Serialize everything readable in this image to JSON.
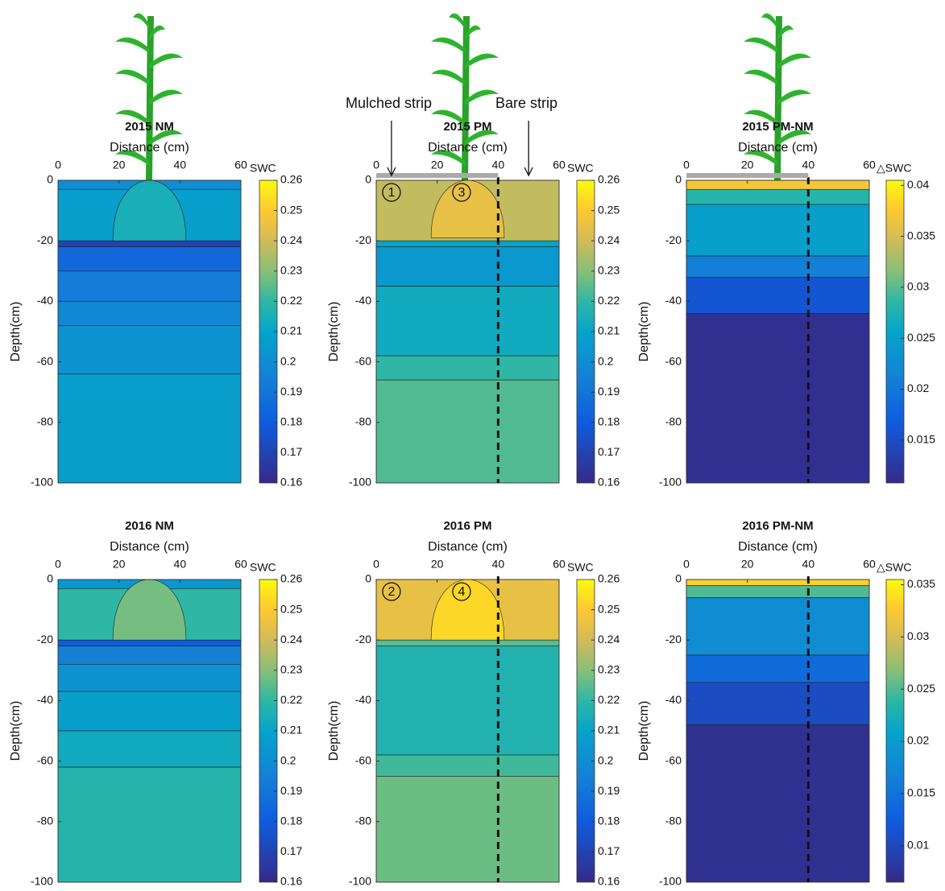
{
  "chart_data": [
    {
      "type": "contour",
      "title": "2015 NM",
      "xlabel": "Distance (cm)",
      "ylabel": "Depth(cm)",
      "colorbar_label": "SWC",
      "xlim": [
        0,
        60
      ],
      "xticks": [
        0,
        20,
        40,
        60
      ],
      "ylim": [
        -100,
        0
      ],
      "yticks": [
        0,
        -20,
        -40,
        -60,
        -80,
        -100
      ],
      "clim": [
        0.16,
        0.26
      ],
      "cticks": [
        0.26,
        0.25,
        0.24,
        0.23,
        0.22,
        0.21,
        0.2,
        0.19,
        0.18,
        0.17,
        0.16
      ],
      "dashed_x": null,
      "layers": [
        {
          "top": 0,
          "bottom": -3,
          "value": 0.2
        },
        {
          "top": -3,
          "bottom": -20,
          "value": 0.208
        },
        {
          "top": -20,
          "bottom": -22,
          "value": 0.17
        },
        {
          "top": -22,
          "bottom": -30,
          "value": 0.185
        },
        {
          "top": -30,
          "bottom": -40,
          "value": 0.193
        },
        {
          "top": -40,
          "bottom": -48,
          "value": 0.198
        },
        {
          "top": -48,
          "bottom": -64,
          "value": 0.203
        },
        {
          "top": -64,
          "bottom": -100,
          "value": 0.207
        }
      ],
      "dome": {
        "value": 0.215,
        "depth": -20
      }
    },
    {
      "type": "contour",
      "title": "2015 PM",
      "xlabel": "Distance (cm)",
      "ylabel": "Depth(cm)",
      "colorbar_label": "SWC",
      "xlim": [
        0,
        60
      ],
      "xticks": [
        0,
        20,
        40,
        60
      ],
      "ylim": [
        -100,
        0
      ],
      "yticks": [
        0,
        -20,
        -40,
        -60,
        -80,
        -100
      ],
      "clim": [
        0.16,
        0.26
      ],
      "cticks": [
        0.26,
        0.25,
        0.24,
        0.23,
        0.22,
        0.21,
        0.2,
        0.19,
        0.18,
        0.17,
        0.16
      ],
      "dashed_x": 40,
      "layers": [
        {
          "top": 0,
          "bottom": -20,
          "value": 0.238
        },
        {
          "top": -20,
          "bottom": -22,
          "value": 0.21
        },
        {
          "top": -22,
          "bottom": -35,
          "value": 0.205
        },
        {
          "top": -35,
          "bottom": -58,
          "value": 0.213
        },
        {
          "top": -58,
          "bottom": -66,
          "value": 0.22
        },
        {
          "top": -66,
          "bottom": -100,
          "value": 0.224
        }
      ],
      "dome": {
        "value": 0.245,
        "depth": -19
      },
      "annotations": [
        "Mulched strip",
        "Bare strip"
      ],
      "markers": [
        "1",
        "3"
      ]
    },
    {
      "type": "contour",
      "title": "2015 PM-NM",
      "xlabel": "Distance (cm)",
      "ylabel": "Depth(cm)",
      "colorbar_label": "△SWC",
      "xlim": [
        0,
        60
      ],
      "xticks": [
        0,
        20,
        40,
        60
      ],
      "ylim": [
        -100,
        0
      ],
      "yticks": [
        0,
        -20,
        -40,
        -60,
        -80,
        -100
      ],
      "clim": [
        0.0108,
        0.0405
      ],
      "cticks": [
        0.04,
        0.035,
        0.03,
        0.025,
        0.02,
        0.015
      ],
      "dashed_x": 40,
      "layers": [
        {
          "top": 0,
          "bottom": -3,
          "value": 0.037
        },
        {
          "top": -3,
          "bottom": -8,
          "value": 0.028
        },
        {
          "top": -8,
          "bottom": -25,
          "value": 0.025
        },
        {
          "top": -25,
          "bottom": -32,
          "value": 0.021
        },
        {
          "top": -32,
          "bottom": -44,
          "value": 0.016
        },
        {
          "top": -44,
          "bottom": -100,
          "value": 0.0115
        }
      ],
      "dome": null
    },
    {
      "type": "contour",
      "title": "2016 NM",
      "xlabel": "Distance (cm)",
      "ylabel": "Depth(cm)",
      "colorbar_label": "SWC",
      "xlim": [
        0,
        60
      ],
      "xticks": [
        0,
        20,
        40,
        60
      ],
      "ylim": [
        -100,
        0
      ],
      "yticks": [
        0,
        -20,
        -40,
        -60,
        -80,
        -100
      ],
      "clim": [
        0.16,
        0.26
      ],
      "cticks": [
        0.26,
        0.25,
        0.24,
        0.23,
        0.22,
        0.21,
        0.2,
        0.19,
        0.18,
        0.17,
        0.16
      ],
      "dashed_x": null,
      "layers": [
        {
          "top": 0,
          "bottom": -3,
          "value": 0.205
        },
        {
          "top": -3,
          "bottom": -20,
          "value": 0.22
        },
        {
          "top": -20,
          "bottom": -22,
          "value": 0.18
        },
        {
          "top": -22,
          "bottom": -28,
          "value": 0.195
        },
        {
          "top": -28,
          "bottom": -37,
          "value": 0.203
        },
        {
          "top": -37,
          "bottom": -50,
          "value": 0.208
        },
        {
          "top": -50,
          "bottom": -62,
          "value": 0.213
        },
        {
          "top": -62,
          "bottom": -100,
          "value": 0.218
        }
      ],
      "dome": {
        "value": 0.228,
        "depth": -20
      }
    },
    {
      "type": "contour",
      "title": "2016 PM",
      "xlabel": "Distance (cm)",
      "ylabel": "Depth(cm)",
      "colorbar_label": "SWC",
      "xlim": [
        0,
        60
      ],
      "xticks": [
        0,
        20,
        40,
        60
      ],
      "ylim": [
        -100,
        0
      ],
      "yticks": [
        0,
        -20,
        -40,
        -60,
        -80,
        -100
      ],
      "clim": [
        0.16,
        0.26
      ],
      "cticks": [
        0.26,
        0.25,
        0.24,
        0.23,
        0.22,
        0.21,
        0.2,
        0.19,
        0.18,
        0.17,
        0.16
      ],
      "dashed_x": 40,
      "layers": [
        {
          "top": 0,
          "bottom": -20,
          "value": 0.245
        },
        {
          "top": -20,
          "bottom": -22,
          "value": 0.225
        },
        {
          "top": -22,
          "bottom": -58,
          "value": 0.217
        },
        {
          "top": -58,
          "bottom": -65,
          "value": 0.222
        },
        {
          "top": -65,
          "bottom": -100,
          "value": 0.227
        }
      ],
      "dome": {
        "value": 0.253,
        "depth": -20
      },
      "markers": [
        "2",
        "4"
      ]
    },
    {
      "type": "contour",
      "title": "2016 PM-NM",
      "xlabel": "Distance (cm)",
      "ylabel": "Depth(cm)",
      "colorbar_label": "△SWC",
      "xlim": [
        0,
        60
      ],
      "xticks": [
        0,
        20,
        40,
        60
      ],
      "ylim": [
        -100,
        0
      ],
      "yticks": [
        0,
        -20,
        -40,
        -60,
        -80,
        -100
      ],
      "clim": [
        0.0065,
        0.0355
      ],
      "cticks": [
        0.035,
        0.03,
        0.025,
        0.02,
        0.015,
        0.01
      ],
      "dashed_x": 40,
      "layers": [
        {
          "top": 0,
          "bottom": -2,
          "value": 0.033
        },
        {
          "top": -2,
          "bottom": -6,
          "value": 0.025
        },
        {
          "top": -6,
          "bottom": -25,
          "value": 0.018
        },
        {
          "top": -25,
          "bottom": -34,
          "value": 0.014
        },
        {
          "top": -34,
          "bottom": -48,
          "value": 0.0105
        },
        {
          "top": -48,
          "bottom": -100,
          "value": 0.0072
        }
      ],
      "dome": null
    }
  ]
}
